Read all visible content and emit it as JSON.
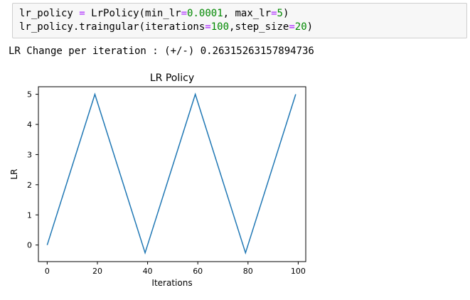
{
  "code_cell": {
    "line1": {
      "lhs": "lr_policy",
      "eq": "=",
      "call": "LrPolicy(min_lr",
      "eq2": "=",
      "min_lr": "0.0001",
      "sep": ", max_lr",
      "eq3": "=",
      "max_lr": "5",
      "close": ")"
    },
    "line2": {
      "prefix": "lr_policy.traingular(iterations",
      "eq": "=",
      "iterations": "100",
      "sep": ",step_size",
      "eq2": "=",
      "step_size": "20",
      "close": ")"
    }
  },
  "output": {
    "text": "LR Change per iteration : (+/-) 0.26315263157894736"
  },
  "colors": {
    "line": "#1f77b4",
    "operator": "#aa22ff",
    "number": "#008800",
    "cell_bg": "#f7f7f7",
    "cell_border": "#cfcfcf"
  },
  "chart_data": {
    "type": "line",
    "title": "LR Policy",
    "xlabel": "Iterations",
    "ylabel": "LR",
    "xlim": [
      -3.5,
      103
    ],
    "ylim": [
      -0.55,
      5.25
    ],
    "xticks": [
      0,
      20,
      40,
      60,
      80,
      100
    ],
    "yticks": [
      0,
      1,
      2,
      3,
      4,
      5
    ],
    "grid": false,
    "series": [
      {
        "x": [
          0,
          19,
          39,
          59,
          79,
          99
        ],
        "y": [
          0,
          5,
          -0.26,
          5,
          -0.26,
          5
        ]
      }
    ]
  }
}
